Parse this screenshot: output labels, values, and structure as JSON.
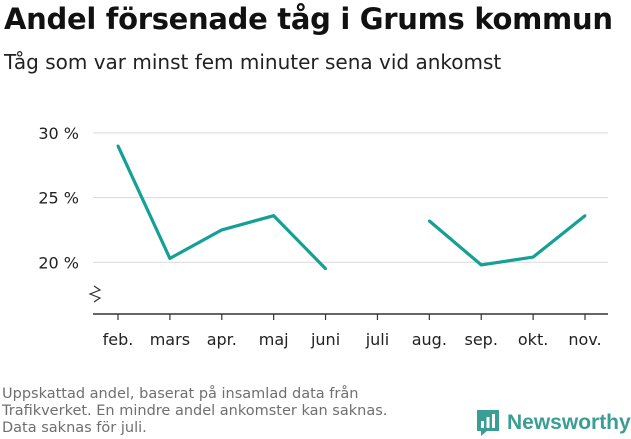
{
  "header": {
    "title": "Andel försenade tåg i Grums kommun",
    "subtitle": "Tåg som var minst fem minuter sena vid ankomst"
  },
  "footnote": {
    "line1": "Uppskattad andel, baserat på insamlad data från",
    "line2": "Trafikverket. En mindre andel ankomster kan saknas.",
    "line3": "Data saknas för juli."
  },
  "brand": {
    "name": "Newsworthy",
    "color": "#3a9e95"
  },
  "chart_data": {
    "type": "line",
    "title": "Andel försenade tåg i Grums kommun",
    "subtitle": "Tåg som var minst fem minuter sena vid ankomst",
    "xlabel": "",
    "ylabel": "",
    "categories": [
      "feb.",
      "mars",
      "apr.",
      "maj",
      "juni",
      "juli",
      "aug.",
      "sep.",
      "okt.",
      "nov."
    ],
    "series": [
      {
        "name": "Andel försenade tåg",
        "color": "#14a095",
        "values": [
          29.0,
          20.3,
          22.5,
          23.6,
          19.5,
          null,
          23.2,
          19.8,
          20.4,
          23.6
        ]
      }
    ],
    "yticks": [
      20,
      25,
      30
    ],
    "ytick_labels": [
      "20 %",
      "25 %",
      "30 %"
    ],
    "ylim": [
      16,
      31
    ],
    "grid": true,
    "axis_break": true
  }
}
